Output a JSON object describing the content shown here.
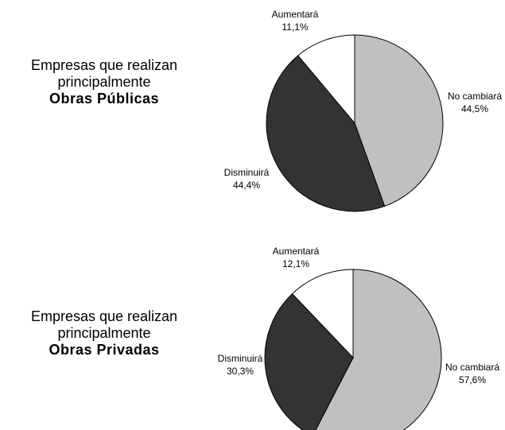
{
  "panels": [
    {
      "line1": "Empresas que realizan",
      "line2": "principalmente",
      "line3": "Obras Públicas"
    },
    {
      "line1": "Empresas que realizan",
      "line2": "principalmente",
      "line3": "Obras Privadas"
    }
  ],
  "colors": {
    "no_cambiara": "#c0c0c0",
    "disminuira": "#333333",
    "aumentara": "#ffffff",
    "outline": "#000000"
  },
  "chart_data": [
    {
      "type": "pie",
      "title": "",
      "slices": [
        {
          "label": "No cambiará",
          "value_text": "44,5%",
          "value": 44.5,
          "color": "#c0c0c0"
        },
        {
          "label": "Disminuirá",
          "value_text": "44,4%",
          "value": 44.4,
          "color": "#333333"
        },
        {
          "label": "Aumentará",
          "value_text": "11,1%",
          "value": 11.1,
          "color": "#ffffff"
        }
      ]
    },
    {
      "type": "pie",
      "title": "",
      "slices": [
        {
          "label": "No cambiará",
          "value_text": "57,6%",
          "value": 57.6,
          "color": "#c0c0c0"
        },
        {
          "label": "Disminuirá",
          "value_text": "30,3%",
          "value": 30.3,
          "color": "#333333"
        },
        {
          "label": "Aumentará",
          "value_text": "12,1%",
          "value": 12.1,
          "color": "#ffffff"
        }
      ]
    }
  ]
}
